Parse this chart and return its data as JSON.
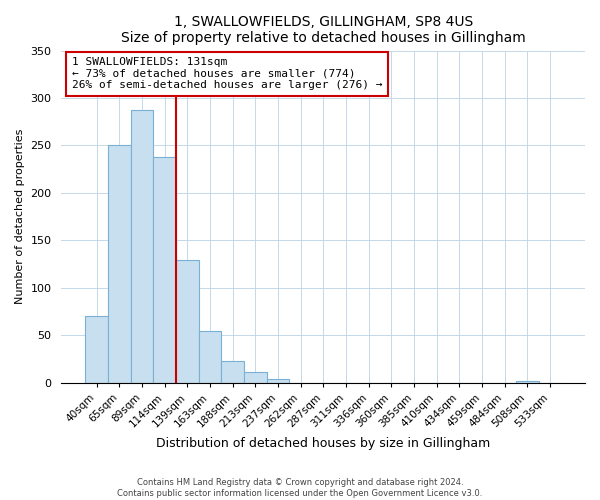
{
  "title": "1, SWALLOWFIELDS, GILLINGHAM, SP8 4US",
  "subtitle": "Size of property relative to detached houses in Gillingham",
  "xlabel": "Distribution of detached houses by size in Gillingham",
  "ylabel": "Number of detached properties",
  "bar_labels": [
    "40sqm",
    "65sqm",
    "89sqm",
    "114sqm",
    "139sqm",
    "163sqm",
    "188sqm",
    "213sqm",
    "237sqm",
    "262sqm",
    "287sqm",
    "311sqm",
    "336sqm",
    "360sqm",
    "385sqm",
    "410sqm",
    "434sqm",
    "459sqm",
    "484sqm",
    "508sqm",
    "533sqm"
  ],
  "bar_values": [
    70,
    250,
    287,
    238,
    129,
    55,
    23,
    11,
    4,
    0,
    0,
    0,
    0,
    0,
    0,
    0,
    0,
    0,
    0,
    2,
    0
  ],
  "bar_color": "#c8dff0",
  "bar_edge_color": "#7ab0d4",
  "vline_index": 4,
  "vline_color": "#cc0000",
  "annotation_title": "1 SWALLOWFIELDS: 131sqm",
  "annotation_line1": "← 73% of detached houses are smaller (774)",
  "annotation_line2": "26% of semi-detached houses are larger (276) →",
  "annotation_box_color": "#ffffff",
  "annotation_box_edge": "#cc0000",
  "ylim": [
    0,
    350
  ],
  "yticks": [
    0,
    50,
    100,
    150,
    200,
    250,
    300,
    350
  ],
  "footer1": "Contains HM Land Registry data © Crown copyright and database right 2024.",
  "footer2": "Contains public sector information licensed under the Open Government Licence v3.0."
}
